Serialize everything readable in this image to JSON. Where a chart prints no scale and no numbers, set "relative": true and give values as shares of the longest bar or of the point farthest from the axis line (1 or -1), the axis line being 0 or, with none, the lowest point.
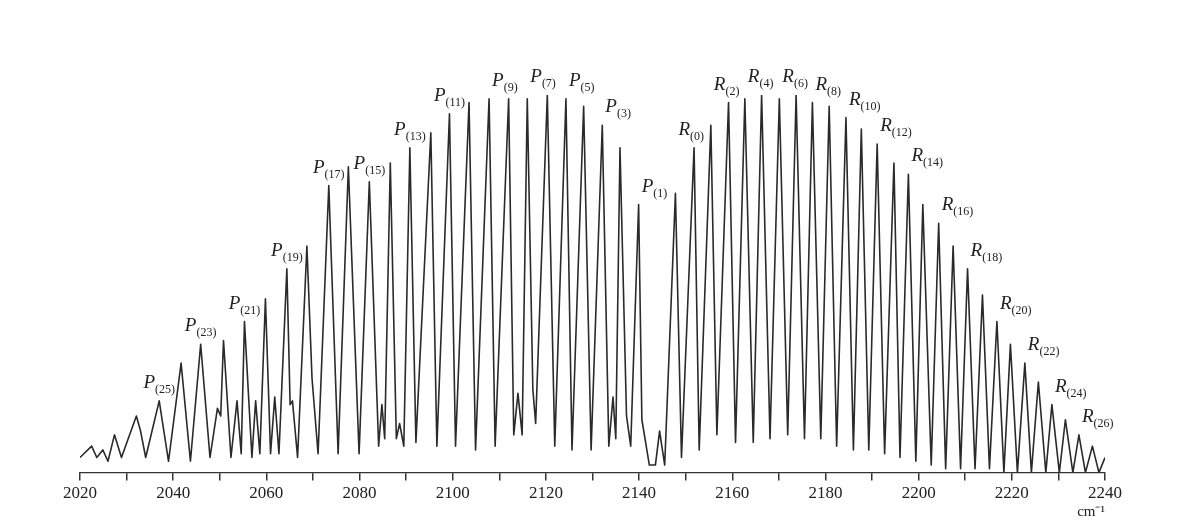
{
  "chart_data": {
    "type": "line",
    "relative": true,
    "xlabel": "cm⁻¹",
    "xlim": [
      2020,
      2240
    ],
    "xticks": [
      2020,
      {
        "value": 2030,
        "label": null
      },
      2040,
      {
        "value": 2050,
        "label": null
      },
      2060,
      {
        "value": 2070,
        "label": null
      },
      2080,
      {
        "value": 2090,
        "label": null
      },
      2100,
      {
        "value": 2110,
        "label": null
      },
      2120,
      {
        "value": 2130,
        "label": null
      },
      2140,
      {
        "value": 2150,
        "label": null
      },
      2160,
      {
        "value": 2170,
        "label": null
      },
      2180,
      {
        "value": 2190,
        "label": null
      },
      2200,
      {
        "value": 2210,
        "label": null
      },
      2220,
      {
        "value": 2230,
        "label": null
      },
      2240
    ],
    "grid": false,
    "legend": false,
    "marker": "none",
    "line_style": "solid",
    "series": [
      {
        "color": "#2a2a2a",
        "x": [
          2020.0,
          2022.5,
          2023.6,
          2024.9,
          2026.0,
          2027.4,
          2028.9,
          2032.1,
          2033.0,
          2034.1,
          2037.0,
          2039.0,
          2041.7,
          2043.7,
          2045.9,
          2047.9,
          2049.5,
          2050.2,
          2050.8,
          2052.4,
          2053.7,
          2054.6,
          2055.3,
          2056.9,
          2057.7,
          2058.6,
          2059.8,
          2060.9,
          2061.8,
          2062.7,
          2064.4,
          2065.1,
          2065.6,
          2066.7,
          2068.7,
          2069.8,
          2071.1,
          2073.4,
          2075.4,
          2077.6,
          2079.9,
          2082.1,
          2084.1,
          2084.8,
          2085.4,
          2086.6,
          2087.9,
          2088.6,
          2089.5,
          2090.8,
          2092.1,
          2095.3,
          2096.6,
          2099.3,
          2100.6,
          2103.5,
          2104.9,
          2107.8,
          2109.1,
          2112.0,
          2113.1,
          2114.0,
          2114.9,
          2116.0,
          2117.2,
          2117.8,
          2120.3,
          2121.9,
          2124.3,
          2125.6,
          2128.1,
          2129.7,
          2132.1,
          2133.5,
          2134.4,
          2135.0,
          2135.9,
          2137.3,
          2138.2,
          2139.9,
          2140.6,
          2142.2,
          2143.5,
          2144.4,
          2145.5,
          2147.8,
          2149.1,
          2151.8,
          2152.9,
          2155.4,
          2156.7,
          2159.2,
          2160.7,
          2162.7,
          2164.5,
          2166.3,
          2168.1,
          2170.1,
          2171.9,
          2173.7,
          2175.5,
          2177.2,
          2179.0,
          2180.8,
          2182.4,
          2184.4,
          2186.0,
          2187.7,
          2189.3,
          2191.1,
          2192.7,
          2194.7,
          2196.0,
          2197.8,
          2199.4,
          2200.9,
          2202.7,
          2204.3,
          2205.8,
          2207.4,
          2209.0,
          2210.5,
          2212.1,
          2213.7,
          2215.2,
          2216.8,
          2218.3,
          2219.7,
          2221.2,
          2222.8,
          2224.2,
          2225.7,
          2227.3,
          2228.6,
          2230.2,
          2231.5,
          2233.1,
          2234.4,
          2235.8,
          2237.3,
          2238.7,
          2240.0
        ],
        "values": [
          0.04,
          0.07,
          0.04,
          0.06,
          0.03,
          0.1,
          0.04,
          0.15,
          0.11,
          0.04,
          0.19,
          0.03,
          0.29,
          0.03,
          0.34,
          0.04,
          0.17,
          0.15,
          0.35,
          0.04,
          0.19,
          0.05,
          0.4,
          0.04,
          0.19,
          0.05,
          0.46,
          0.05,
          0.2,
          0.05,
          0.54,
          0.18,
          0.19,
          0.04,
          0.6,
          0.25,
          0.05,
          0.76,
          0.05,
          0.81,
          0.05,
          0.77,
          0.07,
          0.18,
          0.09,
          0.82,
          0.09,
          0.13,
          0.07,
          0.86,
          0.08,
          0.9,
          0.07,
          0.95,
          0.07,
          0.98,
          0.06,
          0.99,
          0.07,
          0.99,
          0.1,
          0.21,
          0.1,
          0.99,
          0.22,
          0.13,
          1.0,
          0.07,
          0.99,
          0.06,
          0.97,
          0.06,
          0.92,
          0.07,
          0.2,
          0.09,
          0.86,
          0.15,
          0.07,
          0.71,
          0.14,
          0.02,
          0.02,
          0.11,
          0.02,
          0.74,
          0.04,
          0.86,
          0.06,
          0.92,
          0.1,
          0.98,
          0.08,
          0.99,
          0.08,
          1.0,
          0.09,
          0.99,
          0.1,
          1.0,
          0.09,
          0.98,
          0.09,
          0.97,
          0.07,
          0.94,
          0.06,
          0.91,
          0.06,
          0.87,
          0.05,
          0.82,
          0.04,
          0.79,
          0.03,
          0.71,
          0.02,
          0.66,
          0.01,
          0.6,
          0.01,
          0.54,
          0.01,
          0.47,
          0.01,
          0.4,
          0,
          0.34,
          0,
          0.29,
          0,
          0.24,
          0,
          0.18,
          0,
          0.14,
          0,
          0.1,
          0,
          0.07,
          0,
          0.04
        ]
      }
    ],
    "annotations": [
      {
        "text": "P$_{(25)}$",
        "x": 2037.0,
        "y": 0.19
      },
      {
        "text": "P$_{(23)}$",
        "x": 2045.9,
        "y": 0.34
      },
      {
        "text": "P$_{(21)}$",
        "x": 2055.3,
        "y": 0.4
      },
      {
        "text": "P$_{(19)}$",
        "x": 2064.4,
        "y": 0.54
      },
      {
        "text": "P$_{(17)}$",
        "x": 2073.4,
        "y": 0.76
      },
      {
        "text": "P$_{(15)}$",
        "x": 2082.1,
        "y": 0.77
      },
      {
        "text": "P$_{(13)}$",
        "x": 2090.8,
        "y": 0.86
      },
      {
        "text": "P$_{(11)}$",
        "x": 2099.3,
        "y": 0.95
      },
      {
        "text": "P$_{(9)}$",
        "x": 2107.8,
        "y": 0.99
      },
      {
        "text": "P$_{(7)}$",
        "x": 2116.0,
        "y": 0.99
      },
      {
        "text": "P$_{(5)}$",
        "x": 2124.3,
        "y": 0.99
      },
      {
        "text": "P$_{(3)}$",
        "x": 2132.1,
        "y": 0.92
      },
      {
        "text": "P$_{(1)}$",
        "x": 2139.9,
        "y": 0.71
      },
      {
        "text": "R$_{(0)}$",
        "x": 2147.8,
        "y": 0.74
      },
      {
        "text": "R$_{(2)}$",
        "x": 2155.4,
        "y": 0.92
      },
      {
        "text": "R$_{(4)}$",
        "x": 2162.7,
        "y": 0.99
      },
      {
        "text": "R$_{(6)}$",
        "x": 2170.1,
        "y": 0.99
      },
      {
        "text": "R$_{(8)}$",
        "x": 2177.2,
        "y": 0.98
      },
      {
        "text": "R$_{(10)}$",
        "x": 2184.4,
        "y": 0.94
      },
      {
        "text": "R$_{(12)}$",
        "x": 2191.1,
        "y": 0.87
      },
      {
        "text": "R$_{(14)}$",
        "x": 2197.8,
        "y": 0.79
      },
      {
        "text": "R$_{(16)}$",
        "x": 2204.3,
        "y": 0.66
      },
      {
        "text": "R$_{(18)}$",
        "x": 2210.5,
        "y": 0.54
      },
      {
        "text": "R$_{(20)}$",
        "x": 2216.8,
        "y": 0.4
      },
      {
        "text": "R$_{(22)}$",
        "x": 2222.8,
        "y": 0.29
      },
      {
        "text": "R$_{(24)}$",
        "x": 2228.6,
        "y": 0.18
      },
      {
        "text": "R$_{(26)}$",
        "x": 2234.4,
        "y": 0.1
      }
    ]
  }
}
